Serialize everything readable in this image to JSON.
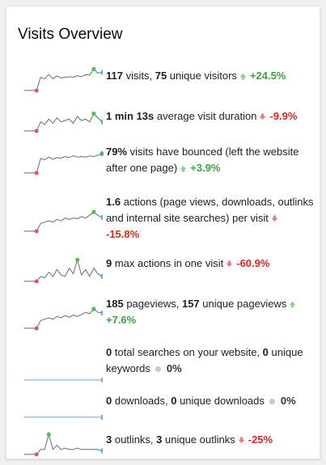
{
  "title": "Visits Overview",
  "colors": {
    "spark_line": "#4a90d9",
    "spark_line_flat": "#7a9cc9",
    "spark_min": "#e05a5a",
    "spark_max": "#5cb85c",
    "spark_last": "#4a90d9",
    "up": "#43a047",
    "down": "#d4291f"
  },
  "metrics": [
    {
      "parts": [
        {
          "t": "117",
          "b": true
        },
        {
          "t": " visits, "
        },
        {
          "t": "75",
          "b": true
        },
        {
          "t": " unique visitors"
        }
      ],
      "trend": "up",
      "pct": "+24.5%",
      "spark": [
        0.12,
        0.12,
        0.12,
        0.12,
        0.6,
        0.55,
        0.7,
        0.55,
        0.65,
        0.58,
        0.6,
        0.62,
        0.6,
        0.66,
        0.62,
        0.7,
        0.68,
        0.9,
        0.75,
        0.78
      ]
    },
    {
      "parts": [
        {
          "t": "1 min 13s",
          "b": true
        },
        {
          "t": " average visit duration"
        }
      ],
      "trend": "down",
      "pct": "-9.9%",
      "spark": [
        0.12,
        0.12,
        0.12,
        0.12,
        0.45,
        0.35,
        0.55,
        0.4,
        0.6,
        0.45,
        0.5,
        0.55,
        0.4,
        0.65,
        0.5,
        0.55,
        0.45,
        0.75,
        0.6,
        0.45
      ]
    },
    {
      "parts": [
        {
          "t": "79%",
          "b": true
        },
        {
          "t": " visits have bounced (left the website after one page)"
        }
      ],
      "trend": "up",
      "pct": "+3.9%",
      "spark": [
        0.12,
        0.12,
        0.12,
        0.12,
        0.65,
        0.6,
        0.7,
        0.62,
        0.68,
        0.66,
        0.72,
        0.68,
        0.75,
        0.7,
        0.72,
        0.7,
        0.74,
        0.72,
        0.76,
        0.82
      ]
    },
    {
      "parts": [
        {
          "t": "1.6",
          "b": true
        },
        {
          "t": " actions (page views, downloads, outlinks and internal site searches) per visit"
        }
      ],
      "trend": "down",
      "pct": "-15.8%",
      "spark": [
        0.12,
        0.12,
        0.12,
        0.12,
        0.4,
        0.45,
        0.5,
        0.45,
        0.55,
        0.5,
        0.6,
        0.55,
        0.6,
        0.58,
        0.65,
        0.6,
        0.7,
        0.82,
        0.7,
        0.62
      ]
    },
    {
      "parts": [
        {
          "t": "9",
          "b": true
        },
        {
          "t": " max actions in one visit"
        }
      ],
      "trend": "down",
      "pct": "-60.9%",
      "spark": [
        0.12,
        0.12,
        0.12,
        0.12,
        0.3,
        0.25,
        0.45,
        0.3,
        0.55,
        0.35,
        0.3,
        0.6,
        0.4,
        0.9,
        0.35,
        0.55,
        0.3,
        0.6,
        0.4,
        0.3
      ]
    },
    {
      "parts": [
        {
          "t": "185",
          "b": true
        },
        {
          "t": " pageviews, "
        },
        {
          "t": "157",
          "b": true
        },
        {
          "t": " unique pageviews"
        }
      ],
      "trend": "up",
      "pct": "+7.6%",
      "spark": [
        0.12,
        0.12,
        0.12,
        0.12,
        0.4,
        0.45,
        0.5,
        0.45,
        0.55,
        0.5,
        0.58,
        0.52,
        0.6,
        0.55,
        0.62,
        0.7,
        0.65,
        0.82,
        0.7,
        0.68
      ]
    },
    {
      "parts": [
        {
          "t": "0",
          "b": true
        },
        {
          "t": " total searches on your website, "
        },
        {
          "t": "0",
          "b": true
        },
        {
          "t": " unique keywords"
        }
      ],
      "trend": "flat",
      "pct": "0%",
      "spark": [
        0.12,
        0.12,
        0.12,
        0.12,
        0.12,
        0.12,
        0.12,
        0.12,
        0.12,
        0.12,
        0.12,
        0.12,
        0.12,
        0.12,
        0.12,
        0.12,
        0.12,
        0.12,
        0.12,
        0.12
      ]
    },
    {
      "parts": [
        {
          "t": "0",
          "b": true
        },
        {
          "t": " downloads, "
        },
        {
          "t": "0",
          "b": true
        },
        {
          "t": " unique downloads"
        }
      ],
      "trend": "flat",
      "pct": "0%",
      "spark": [
        0.12,
        0.12,
        0.12,
        0.12,
        0.12,
        0.12,
        0.12,
        0.12,
        0.12,
        0.12,
        0.12,
        0.12,
        0.12,
        0.12,
        0.12,
        0.12,
        0.12,
        0.12,
        0.12,
        0.12
      ]
    },
    {
      "parts": [
        {
          "t": "3",
          "b": true
        },
        {
          "t": " outlinks, "
        },
        {
          "t": "3",
          "b": true
        },
        {
          "t": " unique outlinks"
        }
      ],
      "trend": "down",
      "pct": "-25%",
      "spark": [
        0.12,
        0.12,
        0.12,
        0.12,
        0.3,
        0.3,
        0.85,
        0.3,
        0.45,
        0.3,
        0.35,
        0.3,
        0.3,
        0.35,
        0.3,
        0.3,
        0.3,
        0.3,
        0.3,
        0.25
      ]
    }
  ]
}
